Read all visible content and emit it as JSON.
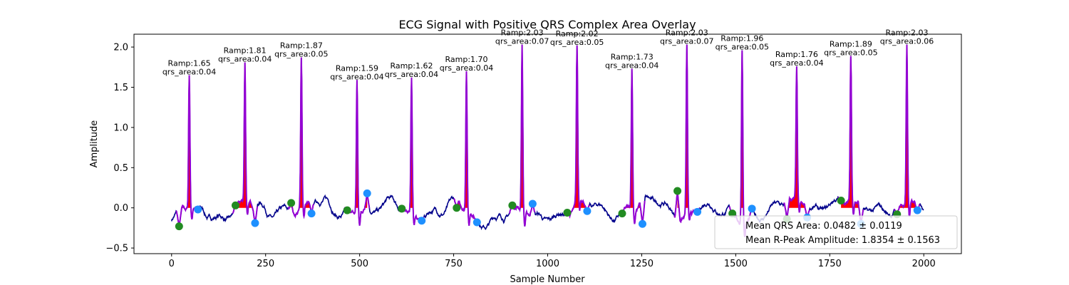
{
  "chart_data": {
    "type": "line",
    "title": "ECG Signal with Positive QRS Complex Area Overlay",
    "xlabel": "Sample Number",
    "ylabel": "Amplitude",
    "xlim": [
      -100,
      2100
    ],
    "ylim": [
      -0.57,
      2.16
    ],
    "xticks": [
      0,
      250,
      500,
      750,
      1000,
      1250,
      1500,
      1750,
      2000
    ],
    "yticks": [
      -0.5,
      0.0,
      0.5,
      1.0,
      1.5,
      2.0
    ],
    "xtick_labels": [
      "0",
      "250",
      "500",
      "750",
      "1000",
      "1250",
      "1500",
      "1750",
      "2000"
    ],
    "ytick_labels": [
      "−0.5",
      "0.0",
      "0.5",
      "1.0",
      "1.5",
      "2.0"
    ],
    "grid": false,
    "colors": {
      "signal": "#00008b",
      "qrs_segment": "#9400d3",
      "qrs_area": "#ff0000",
      "q_points": "#228b22",
      "s_points": "#1e90ff"
    },
    "beats": [
      {
        "r": 47,
        "ramp": 1.65,
        "area": 0.04,
        "q": [
          20,
          -0.23
        ],
        "s": [
          70,
          -0.02
        ],
        "ramp_label": "Ramp:1.65",
        "area_label": "qrs_area:0.04"
      },
      {
        "r": 195,
        "ramp": 1.81,
        "area": 0.04,
        "q": [
          170,
          0.03
        ],
        "s": [
          222,
          -0.19
        ],
        "ramp_label": "Ramp:1.81",
        "area_label": "qrs_area:0.04"
      },
      {
        "r": 345,
        "ramp": 1.87,
        "area": 0.05,
        "q": [
          318,
          0.06
        ],
        "s": [
          372,
          -0.07
        ],
        "ramp_label": "Ramp:1.87",
        "area_label": "qrs_area:0.05"
      },
      {
        "r": 493,
        "ramp": 1.59,
        "area": 0.04,
        "q": [
          467,
          -0.03
        ],
        "s": [
          520,
          0.18
        ],
        "ramp_label": "Ramp:1.59",
        "area_label": "qrs_area:0.04"
      },
      {
        "r": 638,
        "ramp": 1.62,
        "area": 0.04,
        "q": [
          612,
          -0.01
        ],
        "s": [
          665,
          -0.16
        ],
        "ramp_label": "Ramp:1.62",
        "area_label": "qrs_area:0.04"
      },
      {
        "r": 784,
        "ramp": 1.7,
        "area": 0.04,
        "q": [
          758,
          0.0
        ],
        "s": [
          812,
          -0.18
        ],
        "ramp_label": "Ramp:1.70",
        "area_label": "qrs_area:0.04"
      },
      {
        "r": 932,
        "ramp": 2.03,
        "area": 0.07,
        "q": [
          906,
          0.03
        ],
        "s": [
          960,
          0.05
        ],
        "ramp_label": "Ramp:2.03",
        "area_label": "qrs_area:0.07"
      },
      {
        "r": 1078,
        "ramp": 2.02,
        "area": 0.05,
        "q": [
          1052,
          -0.06
        ],
        "s": [
          1105,
          -0.04
        ],
        "ramp_label": "Ramp:2.02",
        "area_label": "qrs_area:0.05"
      },
      {
        "r": 1224,
        "ramp": 1.73,
        "area": 0.04,
        "q": [
          1198,
          -0.07
        ],
        "s": [
          1252,
          -0.2
        ],
        "ramp_label": "Ramp:1.73",
        "area_label": "qrs_area:0.04"
      },
      {
        "r": 1370,
        "ramp": 2.03,
        "area": 0.07,
        "q": [
          1345,
          0.21
        ],
        "s": [
          1398,
          -0.05
        ],
        "ramp_label": "Ramp:2.03",
        "area_label": "qrs_area:0.07"
      },
      {
        "r": 1517,
        "ramp": 1.96,
        "area": 0.05,
        "q": [
          1491,
          -0.07
        ],
        "s": [
          1543,
          -0.01
        ],
        "ramp_label": "Ramp:1.96",
        "area_label": "qrs_area:0.05"
      },
      {
        "r": 1662,
        "ramp": 1.76,
        "area": 0.04,
        "q": [
          1636,
          -0.14
        ],
        "s": [
          1690,
          -0.12
        ],
        "ramp_label": "Ramp:1.76",
        "area_label": "qrs_area:0.04"
      },
      {
        "r": 1806,
        "ramp": 1.89,
        "area": 0.05,
        "q": [
          1780,
          0.09
        ],
        "s": [
          1833,
          -0.2
        ],
        "ramp_label": "Ramp:1.89",
        "area_label": "qrs_area:0.05"
      },
      {
        "r": 1955,
        "ramp": 2.03,
        "area": 0.06,
        "q": [
          1929,
          -0.08
        ],
        "s": [
          1983,
          -0.03
        ],
        "ramp_label": "Ramp:2.03",
        "area_label": "qrs_area:0.06"
      }
    ],
    "legend": {
      "placement": "lower-right",
      "entries": [
        "Mean QRS Area: 0.0482 ± 0.0119",
        "Mean R-Peak Amplitude: 1.8354 ± 0.1563"
      ]
    }
  }
}
